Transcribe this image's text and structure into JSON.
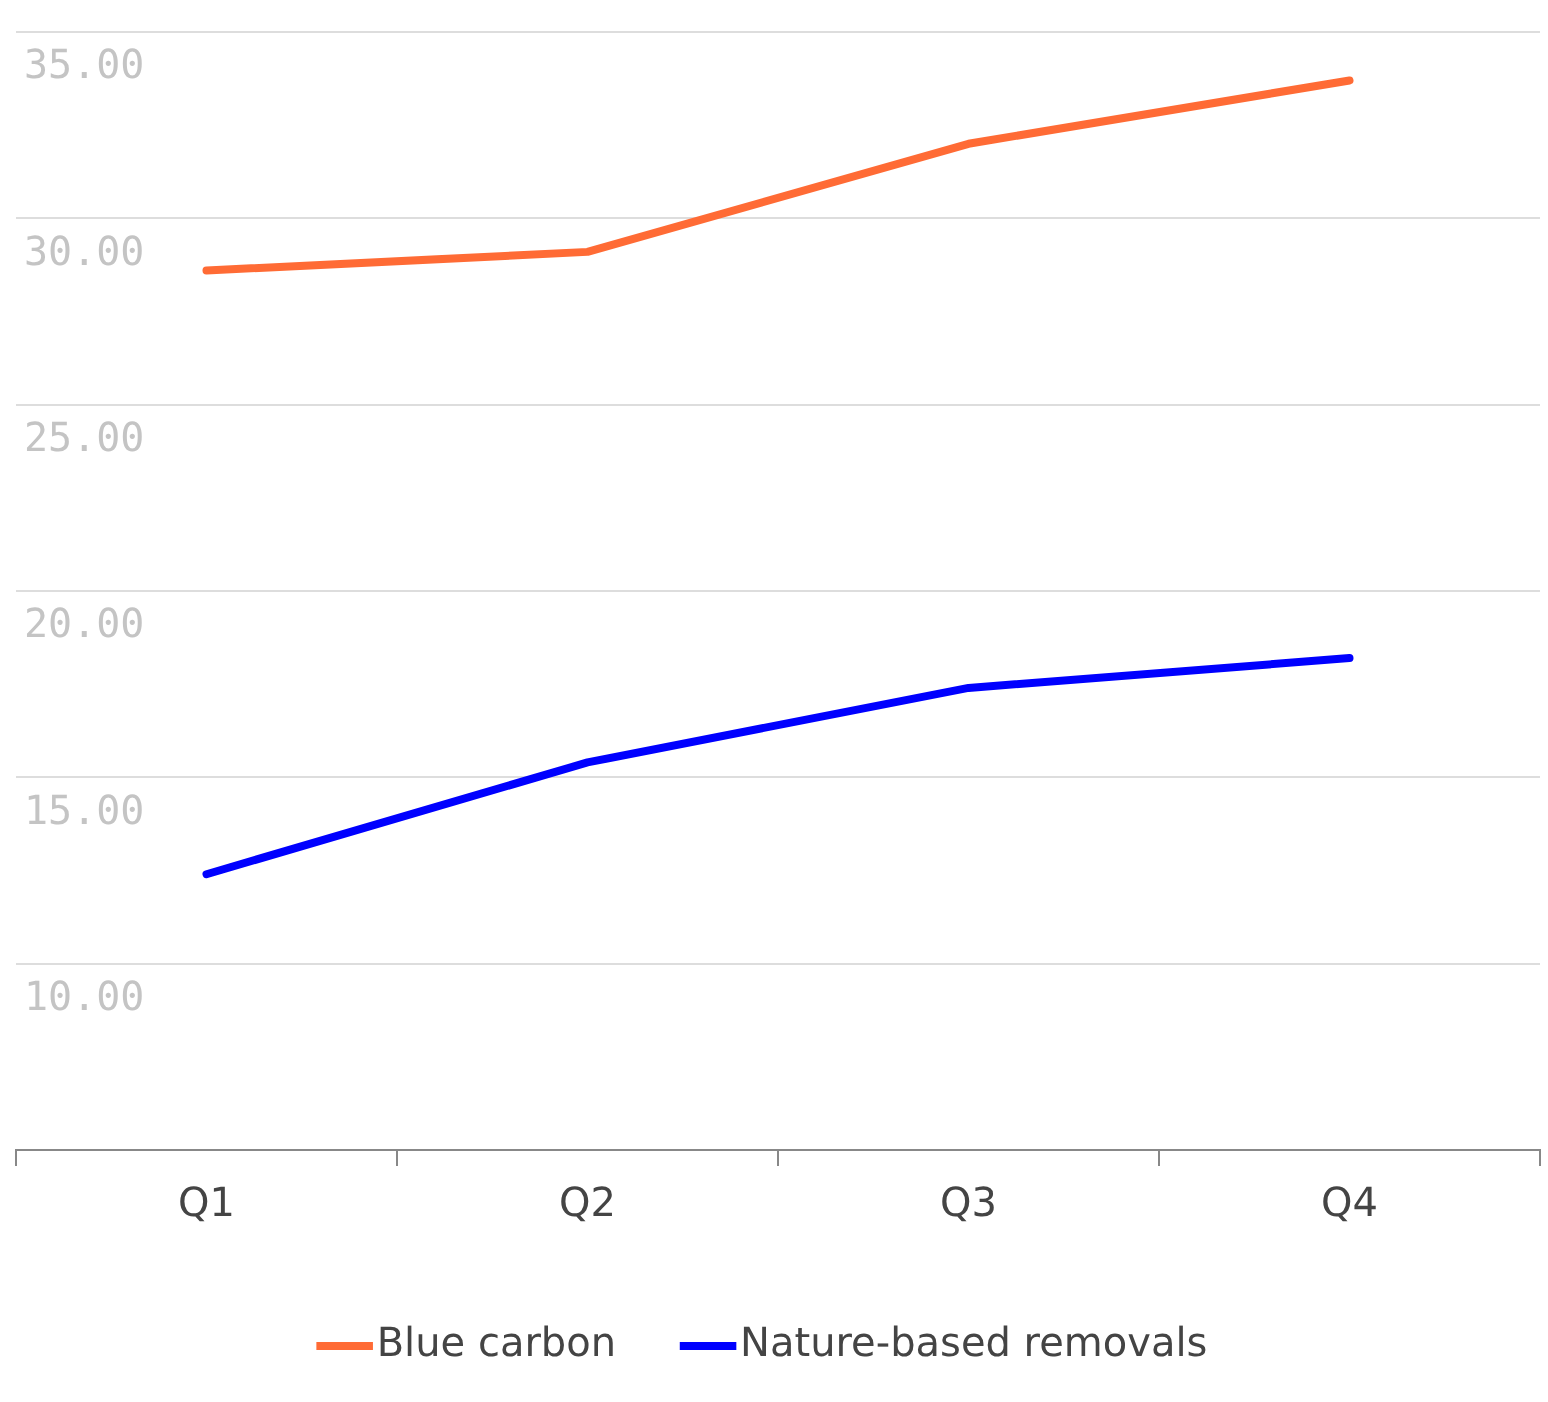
{
  "chart_data": {
    "type": "line",
    "categories": [
      "Q1",
      "Q2",
      "Q3",
      "Q4"
    ],
    "series": [
      {
        "name": "Blue carbon",
        "color": "#ff6b35",
        "values": [
          28.6,
          29.1,
          32.0,
          33.7
        ]
      },
      {
        "name": "Nature-based removals",
        "color": "#0000ff",
        "values": [
          12.4,
          15.4,
          17.4,
          18.2
        ]
      }
    ],
    "ylim": [
      5,
      35
    ],
    "yticks": [
      {
        "value": 5,
        "label": null
      },
      {
        "value": 10,
        "label": "10.00"
      },
      {
        "value": 15,
        "label": "15.00"
      },
      {
        "value": 20,
        "label": "20.00"
      },
      {
        "value": 25,
        "label": "25.00"
      },
      {
        "value": 30,
        "label": "30.00"
      },
      {
        "value": 35,
        "label": "35.00"
      }
    ],
    "grid": "y",
    "legend": "bottom",
    "marker": "none",
    "line_style": "solid"
  }
}
